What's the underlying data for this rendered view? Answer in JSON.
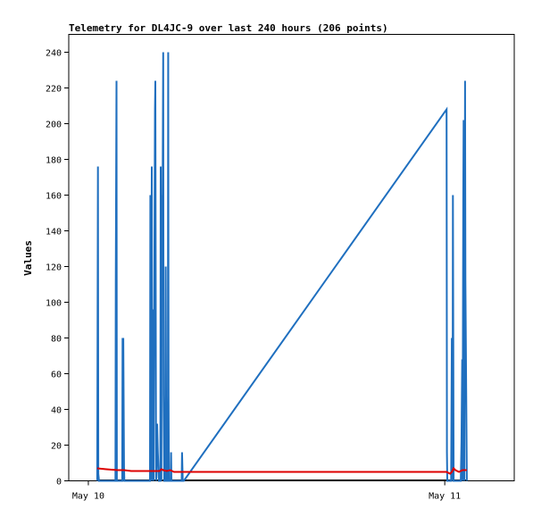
{
  "chart_data": {
    "type": "line",
    "title": "Telemetry for DL4JC-9 over last 240 hours (206 points)",
    "xlabel": "",
    "ylabel": "Values",
    "ylim": [
      0,
      250
    ],
    "yticks": [
      0,
      20,
      40,
      60,
      80,
      100,
      120,
      140,
      160,
      180,
      200,
      220,
      240
    ],
    "xtick_labels": [
      "May 10",
      "May 11"
    ],
    "x_unit": "hours since May 10 00:00",
    "xlim": [
      -0.55,
      11.95
    ],
    "grid": false,
    "legend": "none",
    "colors": {
      "series_blue": "#1f6fbf",
      "series_red": "#dd0000",
      "baseline": "#000000"
    },
    "series": [
      {
        "color": "#1f6fbf",
        "x": [
          0.25,
          0.26,
          0.27,
          0.28,
          0.3,
          0.76,
          0.77,
          0.79,
          0.8,
          0.95,
          0.96,
          0.97,
          0.98,
          1.0,
          1.01,
          1.73,
          1.74,
          1.75,
          1.78,
          1.79,
          1.8,
          1.82,
          1.83,
          1.85,
          1.87,
          1.88,
          1.9,
          1.91,
          1.93,
          1.95,
          1.98,
          2.0,
          2.02,
          2.03,
          2.05,
          2.06,
          2.08,
          2.1,
          2.11,
          2.13,
          2.15,
          2.16,
          2.17,
          2.18,
          2.2,
          2.23,
          2.24,
          2.25,
          2.26,
          2.3,
          2.31,
          2.32,
          2.33,
          2.35,
          2.36,
          2.38,
          2.4,
          2.62,
          2.63,
          2.65,
          2.68,
          10.05,
          10.06,
          10.07,
          10.18,
          10.2,
          10.22,
          10.23,
          10.25,
          10.27,
          10.45,
          10.47,
          10.49,
          10.5,
          10.52,
          10.53,
          10.55,
          10.57,
          10.58,
          10.62
        ],
        "values": [
          0,
          88,
          176,
          4,
          0,
          0,
          112,
          224,
          0,
          0,
          80,
          0,
          80,
          8,
          0,
          0,
          160,
          0,
          176,
          0,
          80,
          96,
          0,
          104,
          208,
          224,
          0,
          2,
          32,
          16,
          0,
          0,
          0,
          176,
          0,
          160,
          144,
          240,
          48,
          0,
          0,
          24,
          120,
          48,
          0,
          0,
          240,
          48,
          0,
          0,
          0,
          16,
          0,
          0,
          0,
          0,
          0,
          0,
          16,
          0,
          0,
          208,
          16,
          0,
          0,
          80,
          0,
          160,
          0,
          0,
          0,
          22,
          68,
          0,
          157,
          202,
          0,
          224,
          112,
          0
        ]
      },
      {
        "color": "#dd0000",
        "x": [
          0.25,
          0.5,
          0.8,
          1.0,
          1.2,
          2.0,
          2.05,
          2.1,
          2.2,
          2.3,
          2.4,
          10.05,
          10.15,
          10.2,
          10.25,
          10.3,
          10.4,
          10.5,
          10.62
        ],
        "values": [
          7,
          6.5,
          6,
          6,
          5.5,
          5.5,
          6.5,
          6,
          5.5,
          6,
          5,
          5,
          4,
          5,
          7,
          6,
          5,
          6,
          6
        ]
      }
    ]
  }
}
